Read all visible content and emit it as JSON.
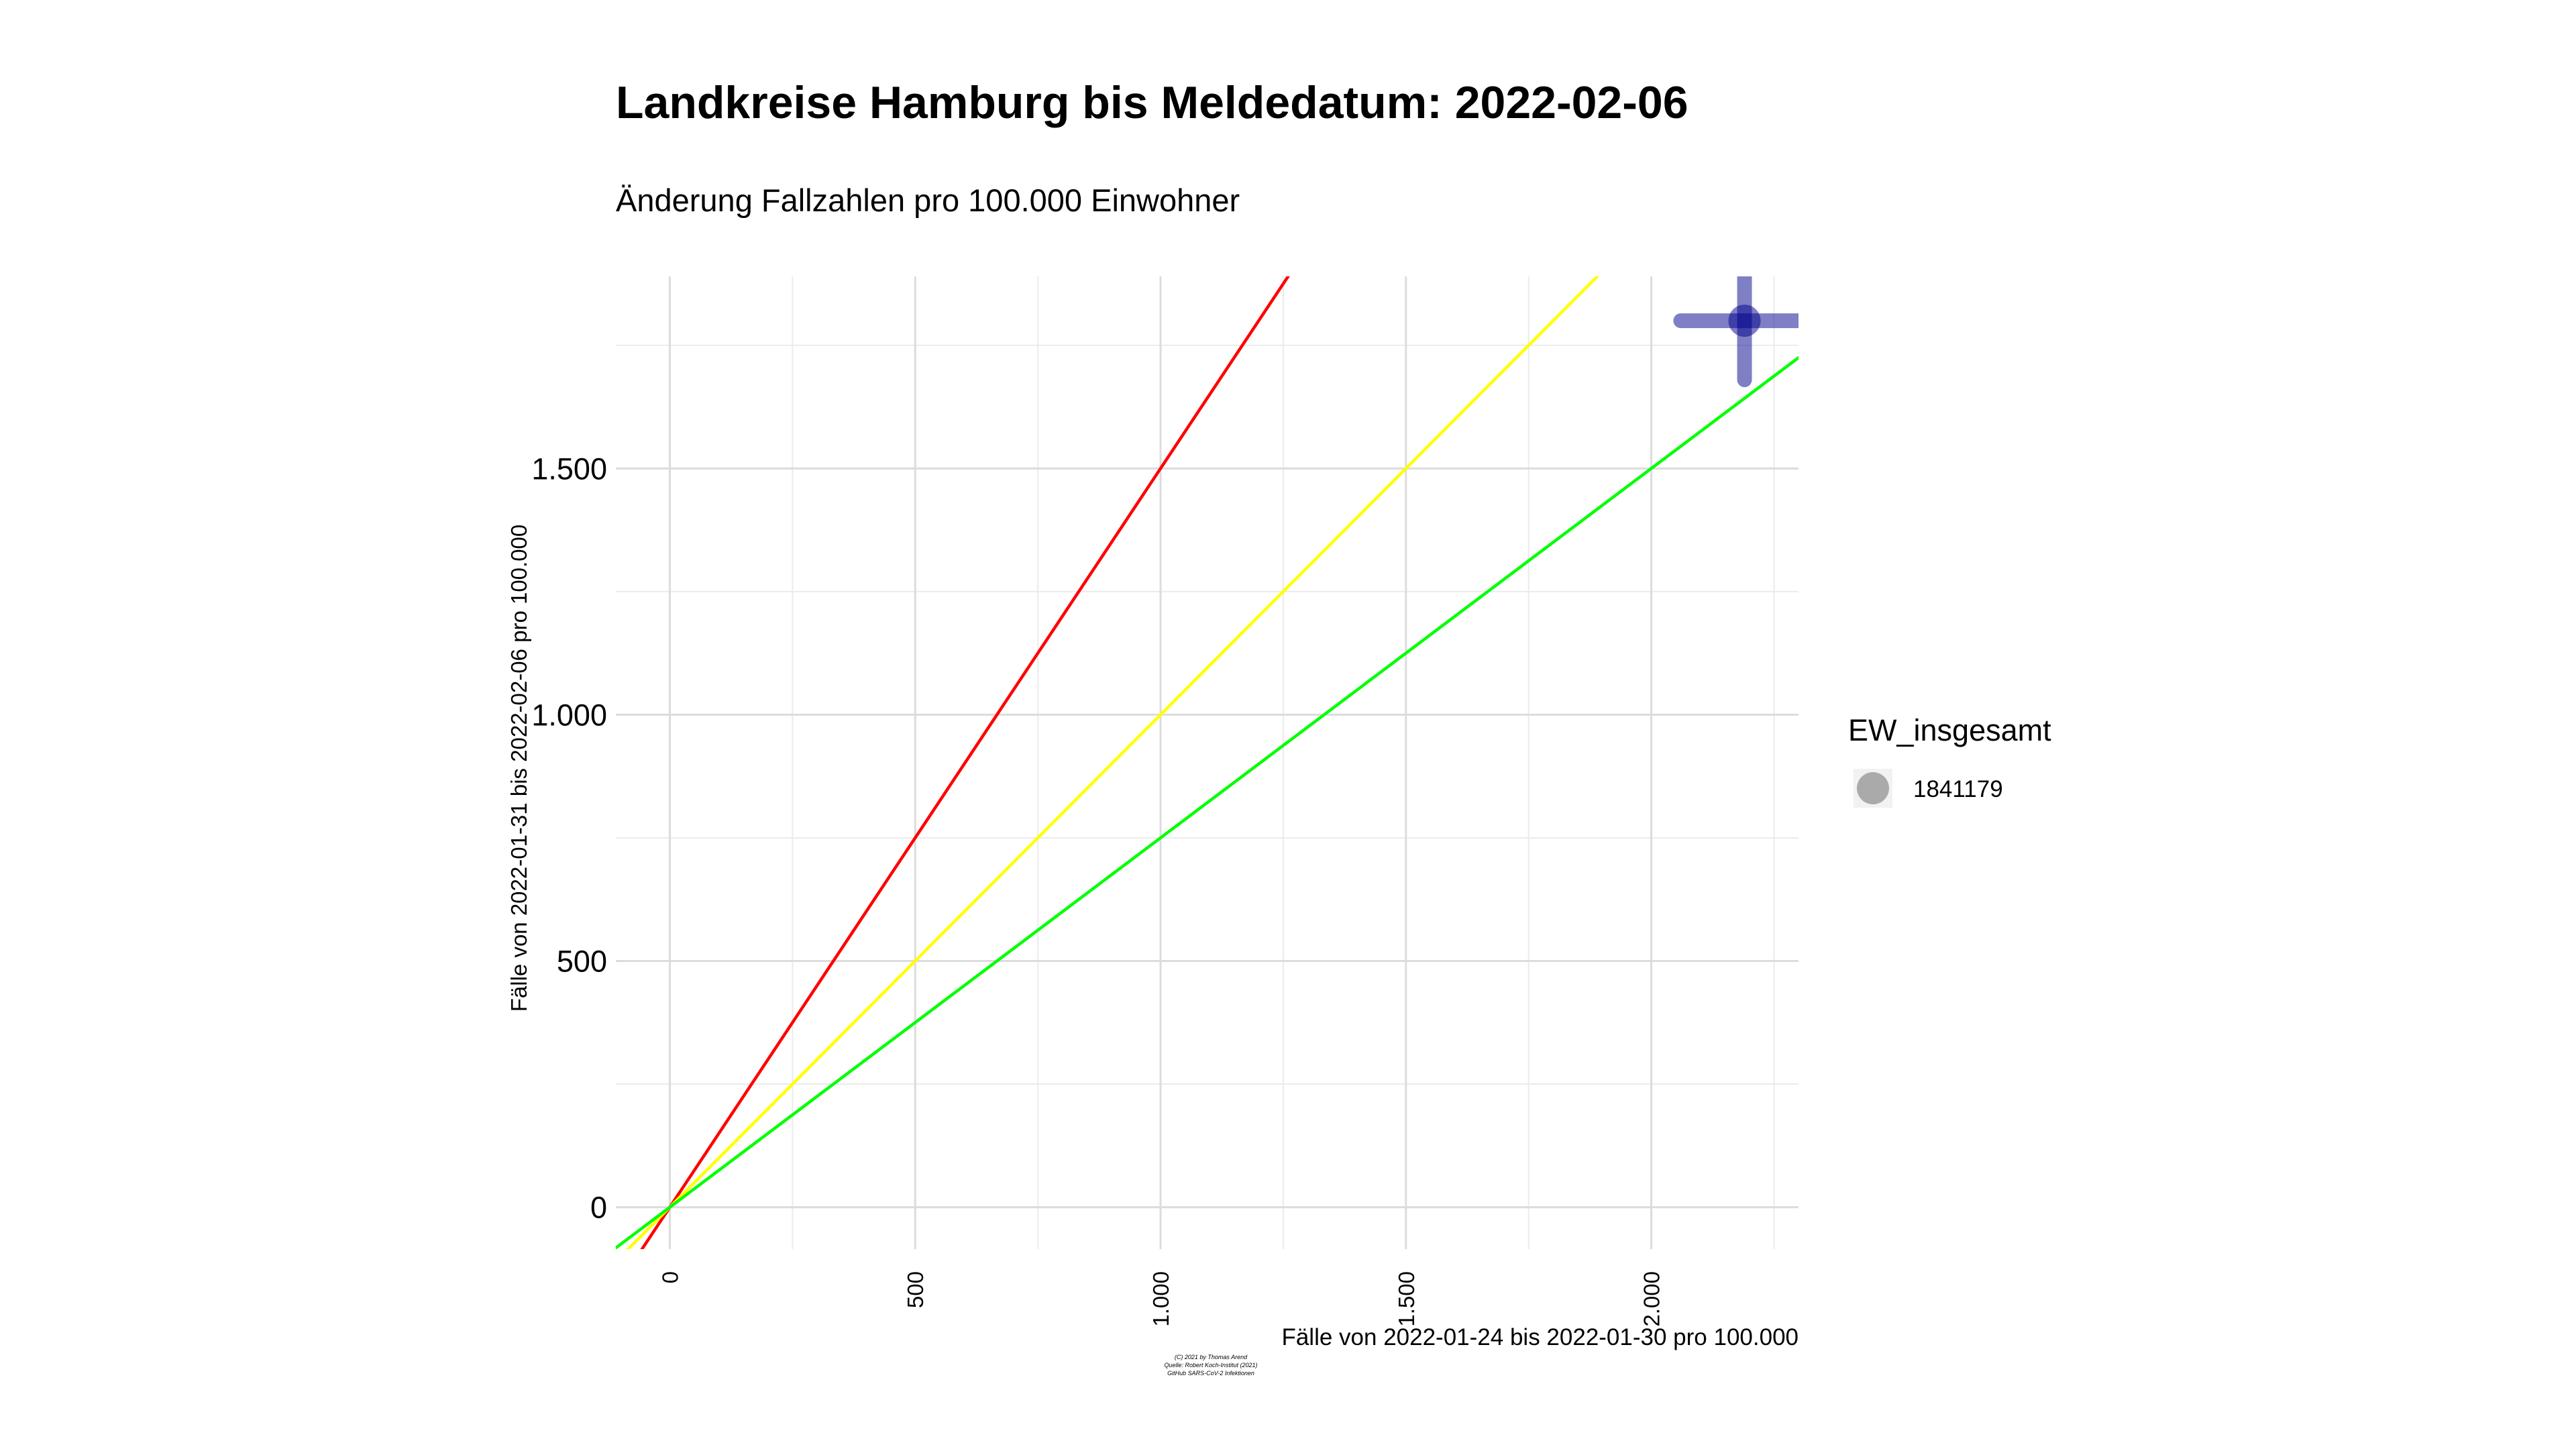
{
  "chart_data": {
    "type": "scatter",
    "title": "Landkreise Hamburg bis Meldedatum: 2022-02-06",
    "subtitle": "Änderung Fallzahlen pro 100.000 Einwohner",
    "xlabel": "Fälle von 2022-01-24 bis 2022-01-30 pro 100.000",
    "ylabel": "Fälle von 2022-01-31 bis 2022-02-06 pro 100.000",
    "xlim": [
      -110,
      2300
    ],
    "ylim": [
      -85,
      1890
    ],
    "x_ticks": [
      0,
      500,
      1000,
      1500,
      2000
    ],
    "x_tick_labels": [
      "0",
      "500",
      "1.000",
      "1.500",
      "2.000"
    ],
    "y_ticks": [
      0,
      500,
      1000,
      1500
    ],
    "y_tick_labels": [
      "0",
      "500",
      "1.000",
      "1.500"
    ],
    "grid": true,
    "reference_lines": [
      {
        "slope": 1.5,
        "intercept": 0,
        "color": "#ff0000"
      },
      {
        "slope": 1.0,
        "intercept": 0,
        "color": "#ffff00"
      },
      {
        "slope": 0.75,
        "intercept": 0,
        "color": "#00ff00"
      }
    ],
    "points": [
      {
        "x": 2190,
        "y": 1800,
        "size": 1841179,
        "x_error": [
          2060,
          2300
        ],
        "y_error": [
          1680,
          1890
        ],
        "color": "#00008b"
      }
    ],
    "legend": {
      "title": "EW_insgesamt",
      "items": [
        "1841179"
      ],
      "placement": "right",
      "key_color": "#aaaaaa"
    },
    "caption_lines": [
      "(C) 2021 by Thomas Arend",
      "Quelle: Robert Koch-Institut (2021)",
      "GitHub SARS-CoV-2 Infektionen"
    ]
  }
}
